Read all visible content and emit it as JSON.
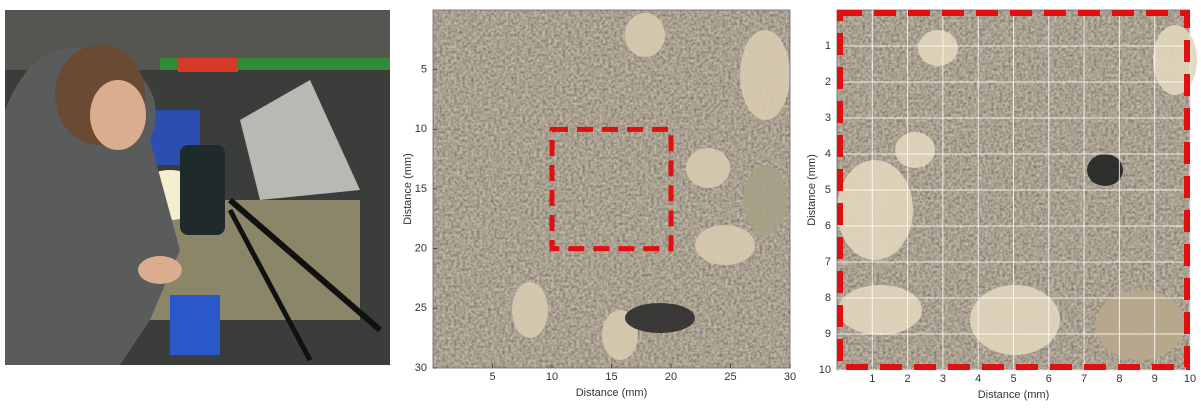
{
  "panels": [
    {
      "kind": "photo"
    },
    {
      "kind": "image-axes",
      "xlabel": "Distance (mm)",
      "ylabel": "Distance (mm)",
      "xlim": [
        0,
        30
      ],
      "ylim": [
        0,
        30
      ],
      "xticks": [
        5,
        10,
        15,
        20,
        25,
        30
      ],
      "yticks": [
        5,
        10,
        15,
        20,
        25,
        30
      ],
      "zoom_box": {
        "x": [
          10,
          20
        ],
        "y": [
          10,
          20
        ],
        "color": "#e01010"
      }
    },
    {
      "kind": "image-axes",
      "xlabel": "Distance (mm)",
      "ylabel": "Distance (mm)",
      "xlim": [
        0,
        10
      ],
      "ylim": [
        0,
        10
      ],
      "xticks": [
        1,
        2,
        3,
        4,
        5,
        6,
        7,
        8,
        9,
        10
      ],
      "yticks": [
        1,
        2,
        3,
        4,
        5,
        6,
        7,
        8,
        9,
        10
      ],
      "grid": true,
      "border_color": "#e01010"
    }
  ]
}
